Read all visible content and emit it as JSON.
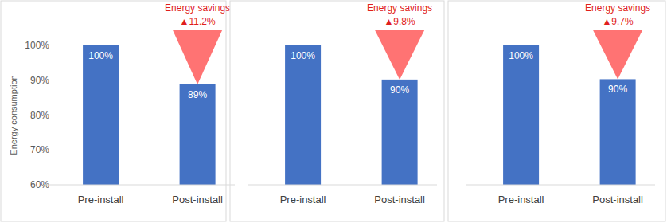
{
  "chart_data": [
    {
      "type": "bar",
      "y_label": "Energy consumption",
      "categories": [
        "Pre-install",
        "Post-install"
      ],
      "values": [
        100,
        88.8
      ],
      "value_labels": [
        "100%",
        "89%"
      ],
      "color": "#4472c4",
      "data_labels": true,
      "ylim": [
        60,
        100
      ],
      "yticks": [
        {
          "value": 60,
          "label": "60%"
        },
        {
          "value": 70,
          "label": "70%"
        },
        {
          "value": 80,
          "label": "80%"
        },
        {
          "value": 90,
          "label": "90%"
        },
        {
          "value": 100,
          "label": "100%"
        }
      ],
      "annotations": [
        "Energy savings",
        "▲11.2%"
      ]
    },
    {
      "type": "bar",
      "categories": [
        "Pre-install",
        "Post-install"
      ],
      "values": [
        100,
        90.2
      ],
      "value_labels": [
        "100%",
        "90%"
      ],
      "color": "#4472c4",
      "data_labels": true,
      "tick_labels": "x",
      "ylim": [
        60,
        100
      ],
      "annotations": [
        "Energy savings",
        "▲9.8%"
      ]
    },
    {
      "type": "bar",
      "categories": [
        "Pre-install",
        "Post-install"
      ],
      "values": [
        100,
        90.3
      ],
      "value_labels": [
        "100%",
        "90%"
      ],
      "color": "#4472c4",
      "data_labels": true,
      "tick_labels": "x",
      "ylim": [
        60,
        100
      ],
      "annotations": [
        "Energy savings",
        "▲9.7%"
      ]
    }
  ]
}
